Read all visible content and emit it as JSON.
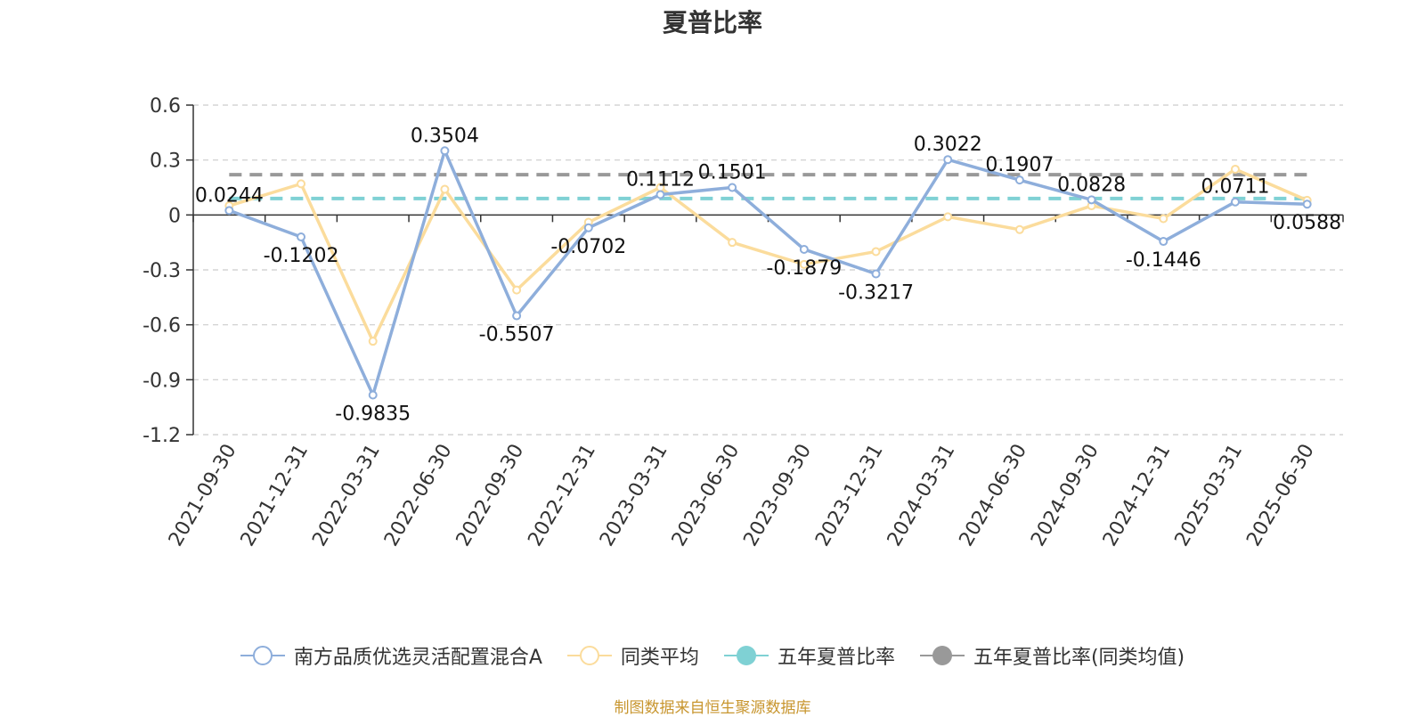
{
  "chart_data": {
    "type": "line",
    "title": "夏普比率",
    "categories": [
      "2021-09-30",
      "2021-12-31",
      "2022-03-31",
      "2022-06-30",
      "2022-09-30",
      "2022-12-31",
      "2023-03-31",
      "2023-06-30",
      "2023-09-30",
      "2023-12-31",
      "2024-03-31",
      "2024-06-30",
      "2024-09-30",
      "2024-12-31",
      "2025-03-31",
      "2025-06-30"
    ],
    "ylim": [
      -1.2,
      0.6
    ],
    "yticks": [
      "0.6",
      "0.3",
      "0",
      "-0.3",
      "-0.6",
      "-0.9",
      "-1.2"
    ],
    "ytick_values": [
      0.6,
      0.3,
      0,
      -0.3,
      -0.6,
      -0.9,
      -1.2
    ],
    "grid": true,
    "legend_position": "bottom",
    "series": [
      {
        "name": "南方品质优选灵活配置混合A",
        "color": "#8eaedb",
        "style": "line-marker",
        "values": [
          0.0244,
          -0.1202,
          -0.9835,
          0.3504,
          -0.5507,
          -0.0702,
          0.1112,
          0.1501,
          -0.1879,
          -0.3217,
          0.3022,
          0.1907,
          0.0828,
          -0.1446,
          0.0711,
          0.0588
        ],
        "labels": [
          "0.0244",
          "-0.1202",
          "-0.9835",
          "0.3504",
          "-0.5507",
          "-0.0702",
          "0.1112",
          "0.1501",
          "-0.1879",
          "-0.3217",
          "0.3022",
          "0.1907",
          "0.0828",
          "-0.1446",
          "0.0711",
          "0.0588"
        ]
      },
      {
        "name": "同类平均",
        "color": "#fbdc9c",
        "style": "line-marker",
        "values": [
          0.05,
          0.17,
          -0.69,
          0.14,
          -0.41,
          -0.04,
          0.15,
          -0.15,
          -0.27,
          -0.2,
          -0.01,
          -0.08,
          0.05,
          -0.02,
          0.25,
          0.08
        ]
      },
      {
        "name": "五年夏普比率",
        "color": "#7fd1d4",
        "style": "dashed",
        "value": 0.09
      },
      {
        "name": "五年夏普比率(同类均值)",
        "color": "#999999",
        "style": "dashed",
        "value": 0.22
      }
    ]
  },
  "footer": {
    "source": "制图数据来自恒生聚源数据库"
  }
}
